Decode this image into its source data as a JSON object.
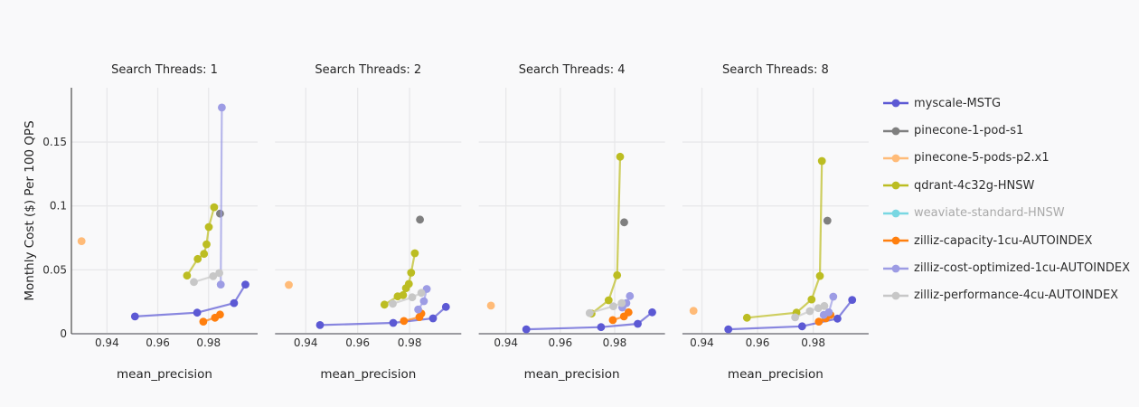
{
  "background": "#f9f9fa",
  "chart_data": {
    "type": "scatter",
    "subtype": "lines+markers faceted",
    "xaxis_title": "mean_precision",
    "yaxis_title": "Monthly Cost ($) Per 100 QPS",
    "x_tick_values": [
      0.94,
      0.96,
      0.98
    ],
    "x_tick_labels": [
      "0.94",
      "0.96",
      "0.98"
    ],
    "y_tick_values": [
      0,
      0.05,
      0.1,
      0.15
    ],
    "y_tick_labels": [
      "0",
      "0.05",
      "0.1",
      "0.15"
    ],
    "y_range": [
      0,
      0.1925
    ],
    "grid": true,
    "legend_position": "right",
    "series_meta": [
      {
        "name": "myscale-MSTG",
        "color": "#5c59d4",
        "visible": true
      },
      {
        "name": "pinecone-1-pod-s1",
        "color": "#7f7f7f",
        "visible": true
      },
      {
        "name": "pinecone-5-pods-p2.x1",
        "color": "#ffbb78",
        "visible": true
      },
      {
        "name": "qdrant-4c32g-HNSW",
        "color": "#bcbd22",
        "visible": true
      },
      {
        "name": "weaviate-standard-HNSW",
        "color": "#79d7e2",
        "visible": false
      },
      {
        "name": "zilliz-capacity-1cu-AUTOINDEX",
        "color": "#ff7f0e",
        "visible": true
      },
      {
        "name": "zilliz-cost-optimized-1cu-AUTOINDEX",
        "color": "#9d9ce4",
        "visible": true
      },
      {
        "name": "zilliz-performance-4cu-AUTOINDEX",
        "color": "#c7c7c7",
        "visible": true
      }
    ],
    "facets": [
      {
        "title": "Search Threads: 1",
        "x_range": [
          0.926,
          0.9993
        ],
        "data": {
          "myscale-MSTG": [
            [
              0.951,
              0.0135
            ],
            [
              0.9755,
              0.0165
            ],
            [
              0.99,
              0.024
            ],
            [
              0.9945,
              0.0385
            ]
          ],
          "pinecone-1-pod-s1": [
            [
              0.9845,
              0.094
            ]
          ],
          "pinecone-5-pods-p2.x1": [
            [
              0.93,
              0.0725
            ]
          ],
          "qdrant-4c32g-HNSW": [
            [
              0.9715,
              0.0455
            ],
            [
              0.9757,
              0.0585
            ],
            [
              0.9782,
              0.0625
            ],
            [
              0.9792,
              0.07
            ],
            [
              0.9801,
              0.0835
            ],
            [
              0.9822,
              0.099
            ]
          ],
          "weaviate-standard-HNSW": [],
          "zilliz-capacity-1cu-AUTOINDEX": [
            [
              0.9779,
              0.0095
            ],
            [
              0.9825,
              0.0125
            ],
            [
              0.9845,
              0.015
            ]
          ],
          "zilliz-cost-optimized-1cu-AUTOINDEX": [
            [
              0.9848,
              0.0385
            ],
            [
              0.9852,
              0.177
            ]
          ],
          "zilliz-performance-4cu-AUTOINDEX": [
            [
              0.9742,
              0.0405
            ],
            [
              0.9818,
              0.045
            ],
            [
              0.9842,
              0.0475
            ]
          ]
        }
      },
      {
        "title": "Search Threads: 2",
        "x_range": [
          0.9282,
          0.9999
        ],
        "data": {
          "myscale-MSTG": [
            [
              0.9455,
              0.0068
            ],
            [
              0.9737,
              0.0085
            ],
            [
              0.989,
              0.012
            ],
            [
              0.994,
              0.021
            ]
          ],
          "pinecone-1-pod-s1": [
            [
              0.984,
              0.0893
            ]
          ],
          "pinecone-5-pods-p2.x1": [
            [
              0.9335,
              0.0382
            ]
          ],
          "qdrant-4c32g-HNSW": [
            [
              0.9703,
              0.0228
            ],
            [
              0.9754,
              0.0292
            ],
            [
              0.9775,
              0.0302
            ],
            [
              0.9786,
              0.0357
            ],
            [
              0.9797,
              0.039
            ],
            [
              0.9806,
              0.0478
            ],
            [
              0.982,
              0.063
            ]
          ],
          "weaviate-standard-HNSW": [],
          "zilliz-capacity-1cu-AUTOINDEX": [
            [
              0.9778,
              0.01
            ],
            [
              0.9838,
              0.013
            ],
            [
              0.9845,
              0.0158
            ]
          ],
          "zilliz-cost-optimized-1cu-AUTOINDEX": [
            [
              0.9833,
              0.019
            ],
            [
              0.9855,
              0.0255
            ],
            [
              0.9866,
              0.035
            ]
          ],
          "zilliz-performance-4cu-AUTOINDEX": [
            [
              0.9735,
              0.0235
            ],
            [
              0.981,
              0.0285
            ],
            [
              0.9845,
              0.032
            ]
          ]
        }
      },
      {
        "title": "Search Threads: 4",
        "x_range": [
          0.93,
          0.9985
        ],
        "data": {
          "myscale-MSTG": [
            [
              0.9475,
              0.0035
            ],
            [
              0.975,
              0.0052
            ],
            [
              0.9885,
              0.0078
            ],
            [
              0.9938,
              0.0168
            ]
          ],
          "pinecone-1-pod-s1": [
            [
              0.9835,
              0.0872
            ]
          ],
          "pinecone-5-pods-p2.x1": [
            [
              0.9345,
              0.022
            ]
          ],
          "qdrant-4c32g-HNSW": [
            [
              0.9715,
              0.0158
            ],
            [
              0.9778,
              0.0262
            ],
            [
              0.9809,
              0.0458
            ],
            [
              0.982,
              0.1385
            ]
          ],
          "weaviate-standard-HNSW": [],
          "zilliz-capacity-1cu-AUTOINDEX": [
            [
              0.9793,
              0.0107
            ],
            [
              0.9834,
              0.0135
            ],
            [
              0.9851,
              0.0168
            ]
          ],
          "zilliz-cost-optimized-1cu-AUTOINDEX": [
            [
              0.9828,
              0.0205
            ],
            [
              0.9843,
              0.024
            ],
            [
              0.9856,
              0.0295
            ]
          ],
          "zilliz-performance-4cu-AUTOINDEX": [
            [
              0.9708,
              0.0162
            ],
            [
              0.9795,
              0.0215
            ],
            [
              0.9826,
              0.024
            ]
          ]
        }
      },
      {
        "title": "Search Threads: 8",
        "x_range": [
          0.933,
          0.9999
        ],
        "data": {
          "myscale-MSTG": [
            [
              0.9495,
              0.0035
            ],
            [
              0.976,
              0.0058
            ],
            [
              0.9887,
              0.0118
            ],
            [
              0.994,
              0.0265
            ]
          ],
          "pinecone-1-pod-s1": [
            [
              0.9851,
              0.0885
            ]
          ],
          "pinecone-5-pods-p2.x1": [
            [
              0.937,
              0.018
            ]
          ],
          "qdrant-4c32g-HNSW": [
            [
              0.9562,
              0.0125
            ],
            [
              0.974,
              0.0165
            ],
            [
              0.9794,
              0.0268
            ],
            [
              0.9824,
              0.0452
            ],
            [
              0.9831,
              0.1352
            ]
          ],
          "weaviate-standard-HNSW": [],
          "zilliz-capacity-1cu-AUTOINDEX": [
            [
              0.982,
              0.0095
            ],
            [
              0.9845,
              0.012
            ],
            [
              0.9862,
              0.0147
            ]
          ],
          "zilliz-cost-optimized-1cu-AUTOINDEX": [
            [
              0.9838,
              0.0147
            ],
            [
              0.9856,
              0.0168
            ],
            [
              0.9872,
              0.029
            ]
          ],
          "zilliz-performance-4cu-AUTOINDEX": [
            [
              0.9735,
              0.0128
            ],
            [
              0.9788,
              0.0177
            ],
            [
              0.9818,
              0.02
            ],
            [
              0.984,
              0.0217
            ]
          ]
        }
      }
    ],
    "style": {
      "grid_color": "#e8e8ea",
      "x_axis_line_color": "#9b9ba0",
      "y_axis_line_color": "#4a4a4a",
      "dimmed_legend_text_color": "#a9a9a9"
    }
  }
}
